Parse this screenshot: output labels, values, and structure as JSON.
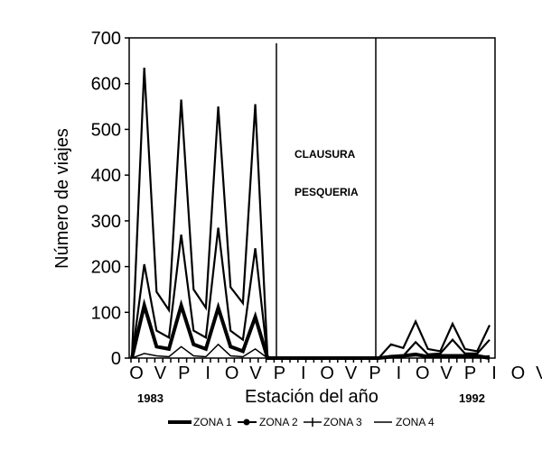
{
  "chart_data": {
    "type": "line",
    "title": "",
    "xlabel": "Estación del año",
    "ylabel": "Número de viajes",
    "ylim": [
      0,
      700
    ],
    "yticks": [
      0,
      100,
      200,
      300,
      400,
      500,
      600,
      700
    ],
    "categories": [
      "O",
      "V",
      "P",
      "I",
      "O",
      "V",
      "P",
      "I",
      "O",
      "V",
      "P",
      "I",
      "O",
      "V",
      "P",
      "I",
      "O",
      "V",
      "P",
      "I",
      "O",
      "V",
      "P",
      "I",
      "O",
      "V",
      "P",
      "I",
      "O",
      "V"
    ],
    "year_start_label": "1983",
    "year_end_label": "1992",
    "grid": false,
    "legend_position": "bottom",
    "annotations": [
      {
        "text": "CLAUSURA",
        "x_index": 19
      },
      {
        "text": "PESQUERIA",
        "x_index": 19
      }
    ],
    "series": [
      {
        "name": "ZONA 1",
        "values": [
          0,
          115,
          25,
          20,
          115,
          30,
          20,
          110,
          25,
          15,
          90,
          0,
          0,
          0,
          0,
          0,
          0,
          0,
          0,
          0,
          0,
          3,
          5,
          8,
          3,
          5,
          5,
          5,
          5,
          0
        ]
      },
      {
        "name": "ZONA 2",
        "values": [
          0,
          205,
          60,
          45,
          270,
          60,
          45,
          285,
          60,
          40,
          240,
          0,
          0,
          0,
          0,
          0,
          0,
          0,
          0,
          0,
          0,
          5,
          5,
          35,
          8,
          10,
          40,
          10,
          10,
          40
        ]
      },
      {
        "name": "ZONA 3",
        "values": [
          0,
          10,
          5,
          3,
          25,
          5,
          3,
          30,
          5,
          3,
          20,
          0,
          0,
          0,
          0,
          0,
          0,
          0,
          0,
          0,
          0,
          5,
          3,
          5,
          5,
          3,
          5,
          5,
          3,
          5
        ]
      },
      {
        "name": "ZONA 4",
        "values": [
          0,
          635,
          145,
          105,
          565,
          150,
          110,
          550,
          155,
          120,
          555,
          0,
          0,
          0,
          0,
          0,
          0,
          0,
          0,
          0,
          0,
          30,
          22,
          80,
          20,
          15,
          75,
          20,
          15,
          72
        ]
      }
    ]
  },
  "axis": {
    "y_tick_labels": [
      "0",
      "100",
      "200",
      "300",
      "400",
      "500",
      "600",
      "700"
    ],
    "x_tick_labels": [
      "O",
      "V",
      "P",
      "I",
      "O",
      "V",
      "P",
      "I",
      "O",
      "V",
      "P",
      "I",
      "O",
      "V",
      "P",
      "I",
      "O",
      "V"
    ]
  },
  "annotation": {
    "line1": "CLAUSURA",
    "line2": "PESQUERIA"
  },
  "labels": {
    "xlabel": "Estación del año",
    "ylabel": "Número de viajes",
    "year_start": "1983",
    "year_end": "1992"
  },
  "legend": [
    {
      "label": "ZONA 1",
      "style": "thick"
    },
    {
      "label": "ZONA 2",
      "style": "dot"
    },
    {
      "label": "ZONA 3",
      "style": "plus"
    },
    {
      "label": "ZONA 4",
      "style": "thin"
    }
  ]
}
